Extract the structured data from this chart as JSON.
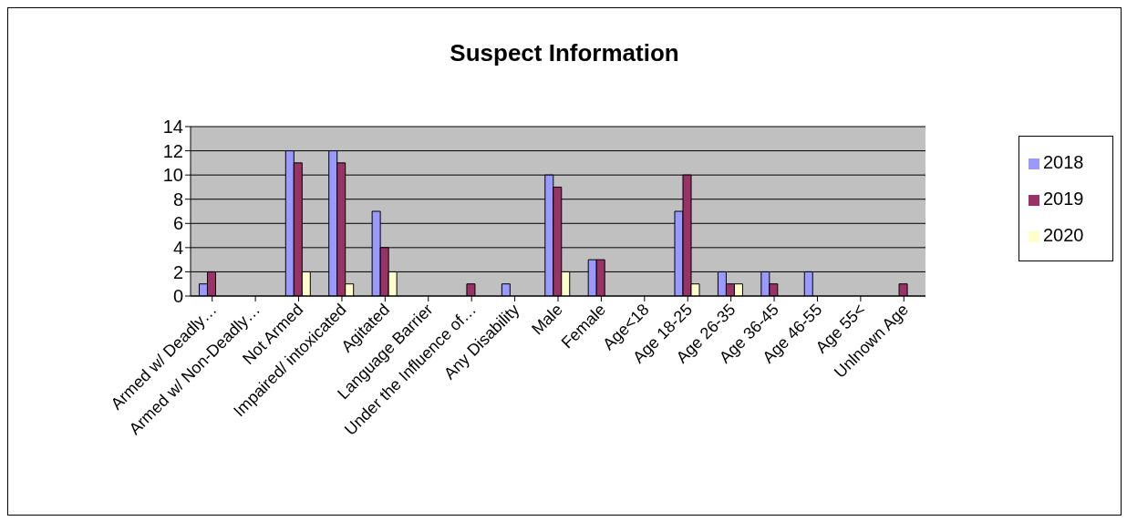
{
  "chart_data": {
    "type": "bar",
    "title": "Suspect Information",
    "categories": [
      "Armed w/ Deadly…",
      "Armed w/ Non-Deadly…",
      "Not Armed",
      "Impaired/ intoxicated",
      "Agitated",
      "Language Barrier",
      "Under the Influence of…",
      "Any Disability",
      "Male",
      "Female",
      "Age<18",
      "Age 18-25",
      "Age 26-35",
      "Age 36-45",
      "Age 46-55",
      "Age 55<",
      "Unlnown Age"
    ],
    "series": [
      {
        "name": "2018",
        "color": "#9999ff",
        "values": [
          1,
          0,
          12,
          12,
          7,
          0,
          0,
          1,
          10,
          3,
          0,
          7,
          2,
          2,
          2,
          0,
          0
        ]
      },
      {
        "name": "2019",
        "color": "#993366",
        "values": [
          2,
          0,
          11,
          11,
          4,
          0,
          1,
          0,
          9,
          3,
          0,
          10,
          1,
          1,
          0,
          0,
          1
        ]
      },
      {
        "name": "2020",
        "color": "#ffffcc",
        "values": [
          0,
          0,
          2,
          1,
          2,
          0,
          0,
          0,
          2,
          0,
          0,
          1,
          1,
          0,
          0,
          0,
          0
        ]
      }
    ],
    "ylim": [
      0,
      14
    ],
    "yticks": [
      0,
      2,
      4,
      6,
      8,
      10,
      12,
      14
    ],
    "grid": "y",
    "legend": "right"
  }
}
